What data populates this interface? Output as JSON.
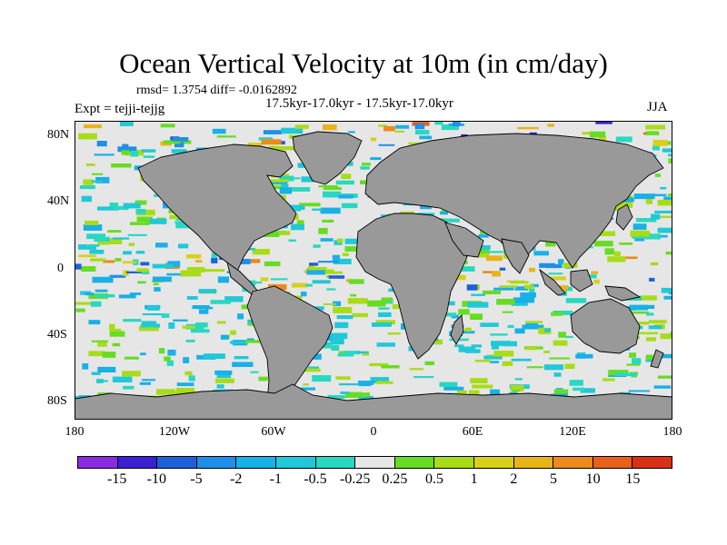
{
  "title": "Ocean Vertical Velocity at 10m (in cm/day)",
  "stats": "rmsd= 1.3754 diff= -0.0162892",
  "period": "17.5kyr-17.0kyr - 17.5kyr-17.0kyr",
  "experiment": "Expt = tejji-tejjg",
  "season": "JJA",
  "colors": {
    "land": "#999999",
    "ocean_background": "#e6e6e6"
  },
  "lat_axis": {
    "labels": [
      "80N",
      "40N",
      "0",
      "40S",
      "80S"
    ],
    "values": [
      80,
      40,
      0,
      -40,
      -80
    ]
  },
  "lon_axis": {
    "labels": [
      "180",
      "120W",
      "60W",
      "0",
      "60E",
      "120E",
      "180"
    ],
    "values": [
      -180,
      -120,
      -60,
      0,
      60,
      120,
      180
    ]
  },
  "colorbar": {
    "labels": [
      "-15",
      "-10",
      "-5",
      "-2",
      "-1",
      "-0.5",
      "-0.25",
      "0.25",
      "0.5",
      "1",
      "2",
      "5",
      "10",
      "15"
    ],
    "colors": [
      "#8a2be2",
      "#3a20d0",
      "#1e60d8",
      "#1e8fe8",
      "#18b0e8",
      "#20c8d8",
      "#28d8c0",
      "#e6e6e6",
      "#66dd22",
      "#a8dc18",
      "#d8d018",
      "#e8b418",
      "#ec8a1c",
      "#e8601c",
      "#d83014"
    ]
  }
}
